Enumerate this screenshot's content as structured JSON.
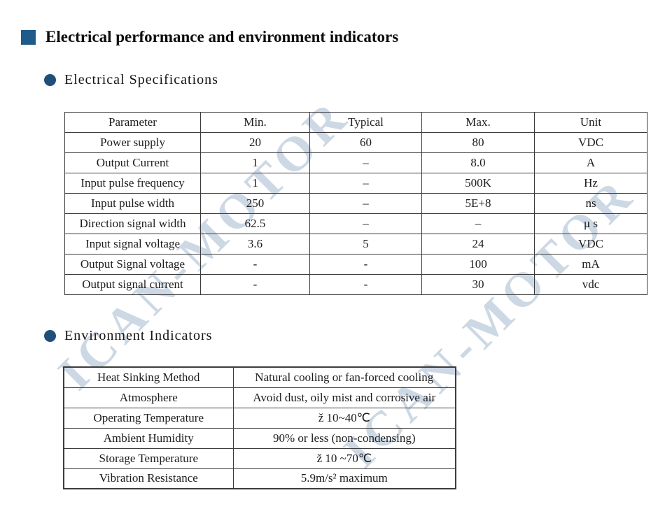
{
  "header": {
    "title": "Electrical performance and environment indicators"
  },
  "sections": {
    "electrical": {
      "heading": "Electrical Specifications"
    },
    "environment": {
      "heading": "Environment Indicators"
    }
  },
  "spec_table": {
    "columns": [
      "Parameter",
      "Min.",
      "Typical",
      "Max.",
      "Unit"
    ],
    "rows": [
      [
        "Power supply",
        "20",
        "60",
        "80",
        "VDC"
      ],
      [
        "Output Current",
        "1",
        "–",
        "8.0",
        "A"
      ],
      [
        "Input pulse frequency",
        "1",
        "–",
        "500K",
        "Hz"
      ],
      [
        "Input pulse width",
        "250",
        "–",
        "5E+8",
        "ns"
      ],
      [
        "Direction signal width",
        "62.5",
        "–",
        "–",
        "μ s"
      ],
      [
        "Input signal voltage",
        "3.6",
        "5",
        "24",
        "VDC"
      ],
      [
        "Output Signal voltage",
        "-",
        "-",
        "100",
        "mA"
      ],
      [
        "Output signal current",
        "-",
        "-",
        "30",
        "vdc"
      ]
    ]
  },
  "env_table": {
    "rows": [
      [
        "Heat Sinking Method",
        "Natural cooling or fan-forced cooling"
      ],
      [
        "Atmosphere",
        "Avoid dust, oily mist and corrosive air"
      ],
      [
        "Operating Temperature",
        "ž 10~40℃"
      ],
      [
        "Ambient Humidity",
        "90% or less (non-condensing)"
      ],
      [
        "Storage Temperature",
        "ž 10 ~70℃"
      ],
      [
        "Vibration Resistance",
        "5.9m/s² maximum"
      ]
    ]
  },
  "watermark": {
    "text": "ICAN-MOTOR",
    "color": "#9db3cc"
  },
  "colors": {
    "title_square": "#1e5a8a",
    "bullet": "#1f4e79",
    "table_border": "#3c3c3c"
  }
}
